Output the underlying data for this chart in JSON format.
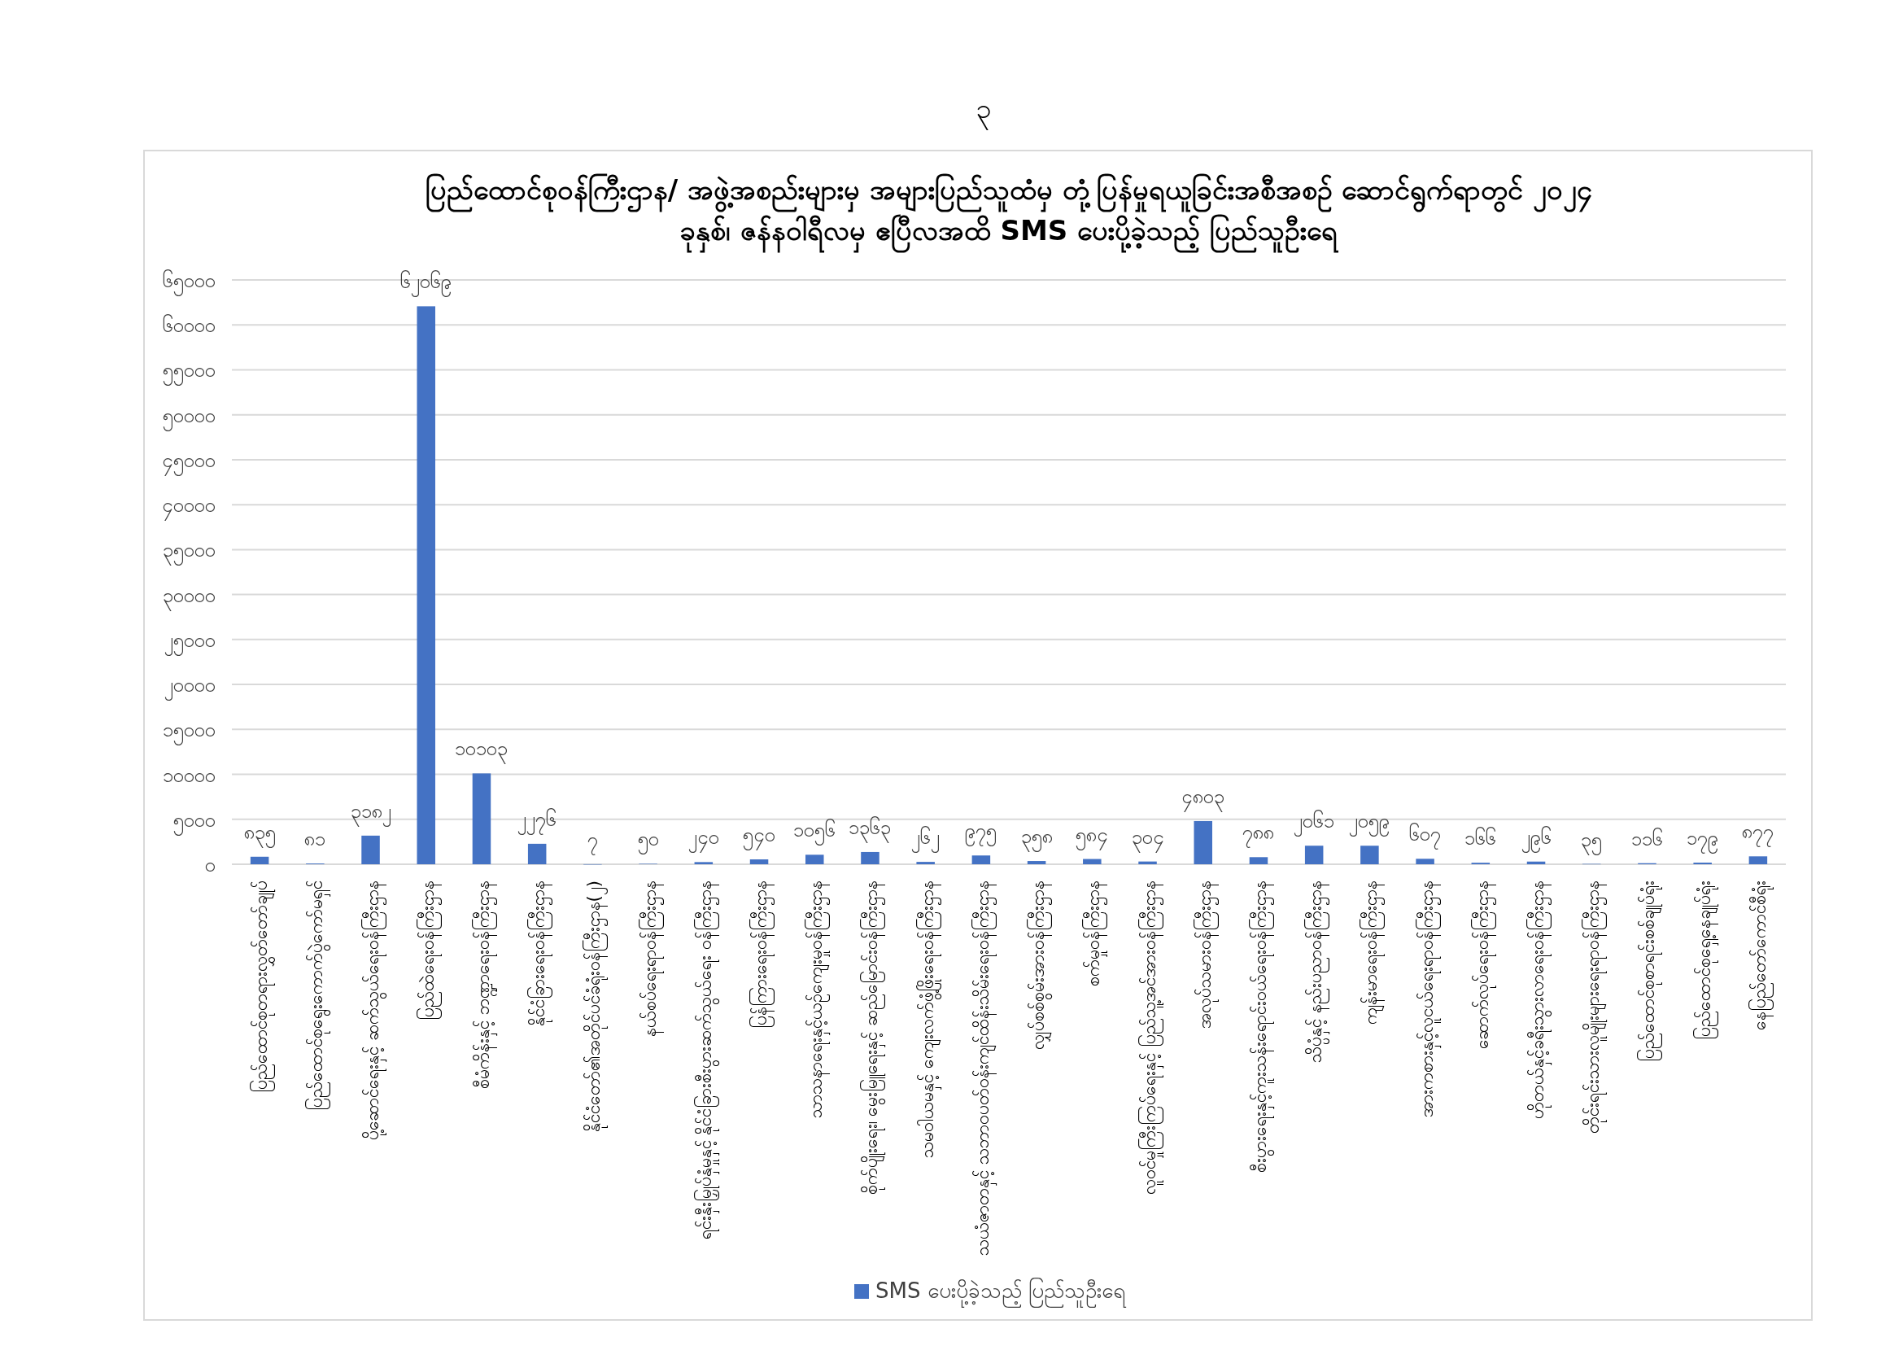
{
  "chart_data": {
    "type": "bar",
    "title": "ပြည်ထောင်စုဝန်ကြီးဌာန/ အဖွဲ့အစည်းများမှ အများပြည်သူထံမှ တုံ့ပြန်မှုရယူခြင်းအစီအစဉ် ဆောင်ရွက်ရာတွင် ၂၀၂၄ ခုနှစ်၊ ဇန်နဝါရီလမှ ဧပြီလအထိ SMS ပေးပို့ခဲ့သည့် ပြည်သူဦးရေ",
    "annotations": [
      "၃"
    ],
    "categories": [
      "ပြည်ထောင်စုတရားလွှတ်တော်ချုပ်",
      "ပြည်ထောင်စုရွေးကောက်ပွဲကော်မရှင်",
      "ပို့ဆောင်ရေးနှင့် ဆက်သွယ်ရေးဝန်ကြီးဌာန",
      "ပြည်ထဲရေးဝန်ကြီးဌာန",
      "စီမံကိန်းနှင့် ဘဏ္ဍာရေးဝန်ကြီးဌာန",
      "နိုင်ငံခြားရေးဝန်ကြီးဌာန",
      "နိုင်ငံတော်၏အတိုင်ပင်ခံရုံးဝန်ကြီးဌာန(၂)",
      "နယ်စပ်ရေးရာဝန်ကြီးဌာန",
      "ရင်းနှီးမြှုပ်နှံမှုနှင့် နိုင်ငံခြားစီးပွားဆက်သွယ်ရေး ဝန်ကြီးဌာန",
      "ပြန်ကြားရေးဝန်ကြီးဌာန",
      "သာသနာရေးနှင့်ယဉ်ကျေးမှုဝန်ကြီးဌာန",
      "စိုက်ပျိုးရေး၊ မွေးမြူရေးနှင့် ဆည်မြောင်းဝန်ကြီးဌာန",
      "သမဝါယမနှင့် ကျေးလက်ဖွံ့ဖြိုးရေးဝန်ကြီးဌာန",
      "သယံဇာတနှင့် သဘာဝပတ်ဝန်းကျင်ထိန်းသိမ်းရေးဝန်ကြီးဌာန",
      "လျှပ်စစ်စွမ်းအားဝန်ကြီးဌာန",
      "စက်မှုဝန်ကြီးဌာန",
      "လူဝင်မှုကြီးကြပ်ရေးနှင့် ပြည်သူ့အင်အားဝန်ကြီးဌာန",
      "အလုပ်သမားဝန်ကြီးဌာန",
      "စီးပွားရေးနှင့်ကူးသန်းရောင်းဝယ်ရေးဝန်ကြီးဌာန",
      "သိပ္ပံနှင့် နည်းပညာဝန်ကြီးဌာန",
      "ကျန်းမာရေးဝန်ကြီးဌာန",
      "အားကစားနှင့်လူငယ်ရေးရာဝန်ကြီးဌာန",
      "ဆောက်လုပ်ရေးဝန်ကြီးဌာန",
      "ဟိုတယ်နှင့်ခရီးသွားလာရေးဝန်ကြီးဌာန",
      "တိုင်းရင်းသားလူမျိုးများရေးရာဝန်ကြီးဌာန",
      "ပြည်ထောင်စုစာရင်းစစ်ချုပ်ရုံး",
      "ပြည်ထောင်စုရှေ့နေချုပ်ရုံး",
      "နေပြည်တော်ကောင်စီရုံး"
    ],
    "series": [
      {
        "name": "SMS ပေးပို့ခဲ့သည့် ပြည်သူဦးရေ",
        "color": "#4472c4",
        "values": [
          835,
          81,
          3182,
          62069,
          10103,
          2276,
          7,
          50,
          240,
          540,
          1056,
          1363,
          262,
          975,
          358,
          584,
          304,
          4803,
          788,
          2061,
          2059,
          607,
          166,
          296,
          35,
          116,
          179,
          877
        ],
        "value_labels": [
          "၈၃၅",
          "၈၁",
          "၃၁၈၂",
          "၆၂၀၆၉",
          "၁၀၁၀၃",
          "၂၂၇၆",
          "၇",
          "၅၀",
          "၂၄၀",
          "၅၄၀",
          "၁၀၅၆",
          "၁၃၆၃",
          "၂၆၂",
          "၉၇၅",
          "၃၅၈",
          "၅၈၄",
          "၃၀၄",
          "၄၈၀၃",
          "၇၈၈",
          "၂၀၆၁",
          "၂၀၅၉",
          "၆၀၇",
          "၁၆၆",
          "၂၉၆",
          "၃၅",
          "၁၁၆",
          "၁၇၉",
          "၈၇၇"
        ]
      }
    ],
    "ylim": [
      0,
      65000
    ],
    "yticks": [
      {
        "value": 0,
        "label": "၀"
      },
      {
        "value": 5000,
        "label": "၅၀၀၀"
      },
      {
        "value": 10000,
        "label": "၁၀၀၀၀"
      },
      {
        "value": 15000,
        "label": "၁၅၀၀၀"
      },
      {
        "value": 20000,
        "label": "၂၀၀၀၀"
      },
      {
        "value": 25000,
        "label": "၂၅၀၀၀"
      },
      {
        "value": 30000,
        "label": "၃၀၀၀၀"
      },
      {
        "value": 35000,
        "label": "၃၅၀၀၀"
      },
      {
        "value": 40000,
        "label": "၄၀၀၀၀"
      },
      {
        "value": 45000,
        "label": "၄၅၀၀၀"
      },
      {
        "value": 50000,
        "label": "၅၀၀၀၀"
      },
      {
        "value": 55000,
        "label": "၅၅၀၀၀"
      },
      {
        "value": 60000,
        "label": "၆၀၀၀၀"
      },
      {
        "value": 65000,
        "label": "၆၅၀၀၀"
      }
    ],
    "grid": "y",
    "legend": "bottom"
  }
}
